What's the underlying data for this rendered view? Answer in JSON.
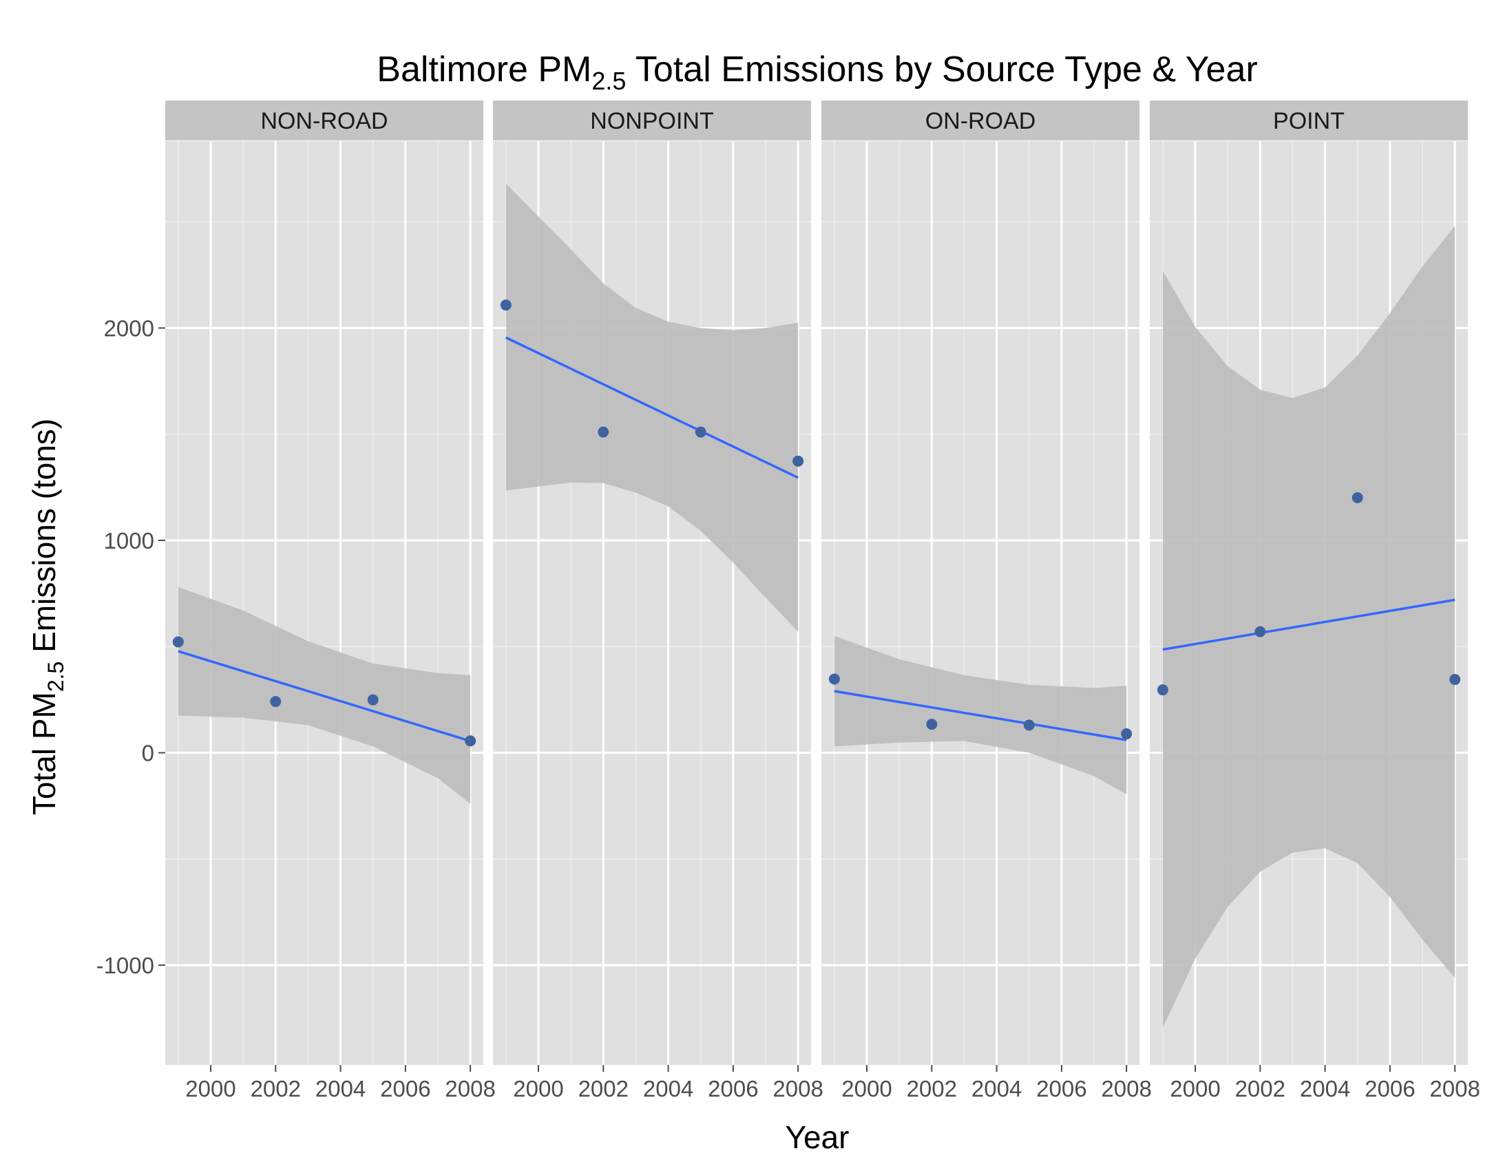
{
  "chart_data": {
    "type": "scatter",
    "title": {
      "prefix": "Baltimore PM",
      "subscript": "2.5",
      "suffix": " Total Emissions by Source Type & Year"
    },
    "xlabel": "Year",
    "ylabel": {
      "prefix": "Total PM",
      "subscript": "2.5",
      "suffix": " Emissions (tons)"
    },
    "x_ticks": [
      "2000",
      "2002",
      "2004",
      "2006",
      "2008"
    ],
    "y_ticks": [
      "-1000",
      "0",
      "1000",
      "2000"
    ],
    "xlim": [
      1998.6,
      2008.4
    ],
    "ylim": [
      -1470,
      2880
    ],
    "grid": true,
    "colors": {
      "point": "#3f63a1",
      "fit_line": "#3366ff",
      "ribbon": "#bdbdbd",
      "panel_bg": "#e0e0e0",
      "strip_bg": "#c4c4c4"
    },
    "panels": [
      {
        "label": "NON-ROAD",
        "points": [
          [
            1999,
            522
          ],
          [
            2002,
            241
          ],
          [
            2005,
            249
          ],
          [
            2008,
            56
          ]
        ],
        "fit": [
          [
            1999,
            478
          ],
          [
            2008,
            55
          ]
        ],
        "band": [
          [
            1999,
            780,
            175
          ],
          [
            2001,
            670,
            165
          ],
          [
            2003,
            525,
            130
          ],
          [
            2005,
            420,
            30
          ],
          [
            2007,
            375,
            -120
          ],
          [
            2008,
            365,
            -240
          ]
        ]
      },
      {
        "label": "NONPOINT",
        "points": [
          [
            1999,
            2108
          ],
          [
            2002,
            1510
          ],
          [
            2005,
            1510
          ],
          [
            2008,
            1373
          ]
        ],
        "fit": [
          [
            1999,
            1955
          ],
          [
            2008,
            1295
          ]
        ],
        "band": [
          [
            1999,
            2680,
            1235
          ],
          [
            2001,
            2370,
            1272
          ],
          [
            2002,
            2210,
            1270
          ],
          [
            2003,
            2095,
            1225
          ],
          [
            2004,
            2030,
            1160
          ],
          [
            2005,
            2000,
            1045
          ],
          [
            2006,
            1990,
            895
          ],
          [
            2007,
            2000,
            730
          ],
          [
            2008,
            2025,
            570
          ]
        ]
      },
      {
        "label": "ON-ROAD",
        "points": [
          [
            1999,
            347
          ],
          [
            2002,
            134
          ],
          [
            2005,
            130
          ],
          [
            2008,
            89
          ]
        ],
        "fit": [
          [
            1999,
            290
          ],
          [
            2008,
            60
          ]
        ],
        "band": [
          [
            1999,
            550,
            30
          ],
          [
            2001,
            440,
            48
          ],
          [
            2003,
            365,
            55
          ],
          [
            2005,
            320,
            0
          ],
          [
            2007,
            305,
            -110
          ],
          [
            2008,
            315,
            -195
          ]
        ]
      },
      {
        "label": "POINT",
        "points": [
          [
            1999,
            296
          ],
          [
            2002,
            570
          ],
          [
            2005,
            1201
          ],
          [
            2008,
            345
          ]
        ],
        "fit": [
          [
            1999,
            486
          ],
          [
            2008,
            720
          ]
        ],
        "band": [
          [
            1999,
            2270,
            -1295
          ],
          [
            2000,
            2005,
            -970
          ],
          [
            2001,
            1820,
            -725
          ],
          [
            2002,
            1710,
            -560
          ],
          [
            2003,
            1670,
            -470
          ],
          [
            2004,
            1720,
            -450
          ],
          [
            2005,
            1870,
            -520
          ],
          [
            2006,
            2070,
            -680
          ],
          [
            2007,
            2290,
            -880
          ],
          [
            2008,
            2480,
            -1060
          ]
        ]
      }
    ]
  }
}
